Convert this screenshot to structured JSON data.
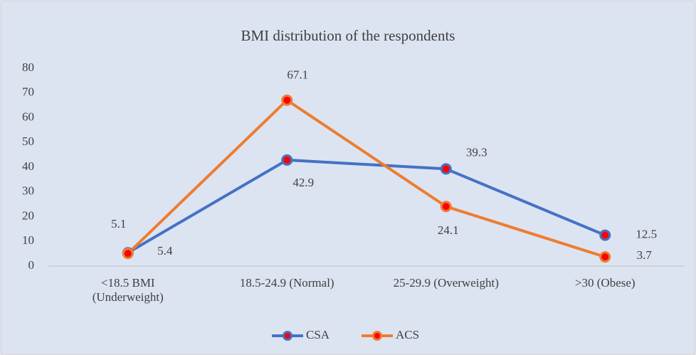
{
  "chart_data": {
    "type": "line",
    "title": "BMI distribution of the respondents",
    "categories": [
      "<18.5 BMI (Underweight)",
      "18.5-24.9 (Normal)",
      "25-29.9 (Overweight)",
      ">30 (Obese)"
    ],
    "series": [
      {
        "name": "CSA",
        "color": "#4472c4",
        "values": [
          5.4,
          42.9,
          39.3,
          12.5
        ]
      },
      {
        "name": "ACS",
        "color": "#ed7d31",
        "values": [
          5.1,
          67.1,
          24.1,
          3.7
        ]
      }
    ],
    "marker_color": "#ff0000",
    "ylim": [
      0,
      80
    ],
    "yticks": [
      0,
      10,
      20,
      30,
      40,
      50,
      60,
      70,
      80
    ],
    "grid": false
  }
}
